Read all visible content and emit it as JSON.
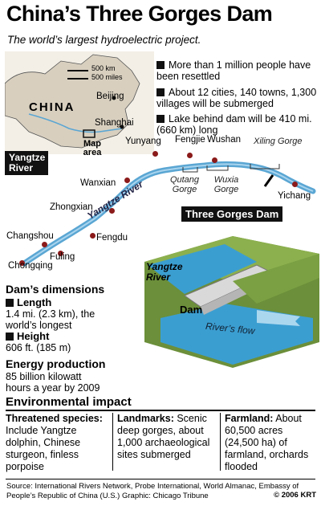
{
  "header": {
    "title": "China’s Three Gorges Dam",
    "subtitle": "The world’s largest hydroelectric project."
  },
  "locator_map": {
    "scale_km": "500 km",
    "scale_miles": "500 miles",
    "country": "CHINA",
    "cities": [
      "Beijing",
      "Shanghai"
    ],
    "map_area_label": "Map area",
    "river_label": "Yangtze River"
  },
  "facts": [
    "More than 1 million people have been resettled",
    "About 12 cities, 140 towns, 1,300 villages will be submerged",
    "Lake behind dam will be 410 mi. (660 km) long"
  ],
  "river_map": {
    "cities": {
      "yunyang": "Yunyang",
      "fengjie": "Fengjie",
      "wushan": "Wushan",
      "wanxian": "Wanxian",
      "zhongxian": "Zhongxian",
      "changshou": "Changshou",
      "fengdu": "Fengdu",
      "fuling": "Fuling",
      "chongqing": "Chongqing",
      "yichang": "Yichang"
    },
    "gorges": {
      "xiling": "Xiling Gorge",
      "qutang": "Qutang Gorge",
      "wuxia": "Wuxia Gorge"
    },
    "river_label": "Yangtze River",
    "dam_label": "Three Gorges Dam"
  },
  "diagram": {
    "river_label": "Yangtze River",
    "dam_label": "Dam",
    "flow_label": "River’s flow"
  },
  "dimensions": {
    "heading": "Dam’s dimensions",
    "length_label": "Length",
    "length_value": "1.4 mi. (2.3 km), the world’s longest",
    "height_label": "Height",
    "height_value": "606 ft. (185 m)"
  },
  "energy": {
    "heading": "Energy production",
    "value": "85 billion kilowatt hours a year by 2009"
  },
  "environment": {
    "heading": "Environmental impact",
    "columns": [
      {
        "label": "Threatened species:",
        "text": "Include Yangtze dolphin, Chinese sturgeon, finless porpoise"
      },
      {
        "label": "Landmarks:",
        "text": "Scenic deep gorges, about 1,000 archaeological sites submerged"
      },
      {
        "label": "Farmland:",
        "text": "About 60,500 acres (24,500 ha) of farmland, orchards flooded"
      }
    ]
  },
  "footer": {
    "source": "Source: International Rivers Network, Probe International, World Almanac, Embassy of People’s Republic of China (U.S.)",
    "graphic": "Graphic: Chicago Tribune",
    "credit": "© 2006 KRT"
  },
  "colors": {
    "river": "#5aa6d3",
    "land": "#c9b48c",
    "map_bg": "#e9e3d6",
    "dot": "#8b1a1a",
    "water": "#3b9ed1"
  }
}
